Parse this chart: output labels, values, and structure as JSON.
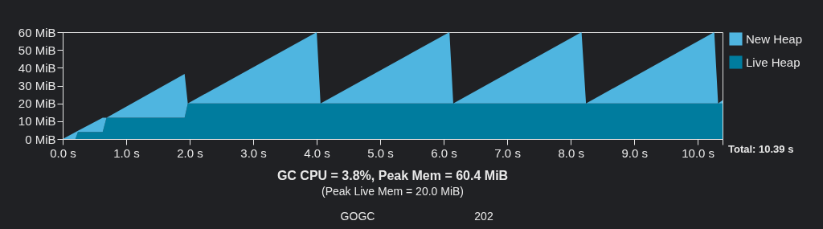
{
  "chart_data": {
    "type": "area",
    "stacked": true,
    "title": "GC CPU = 3.8%, Peak Mem = 60.4 MiB",
    "subtitle": "(Peak Live Mem = 20.0 MiB)",
    "x": [
      0,
      0.2,
      0.24,
      0.63,
      0.69,
      1.92,
      1.97,
      4.0,
      4.06,
      6.09,
      6.15,
      8.17,
      8.24,
      10.26,
      10.32,
      10.39
    ],
    "series": [
      {
        "name": "Live Heap",
        "color": "#007c9e",
        "values": [
          0,
          0,
          4,
          4,
          12,
          12,
          20,
          20,
          20,
          20,
          20,
          20,
          20,
          20,
          20,
          20
        ]
      },
      {
        "name": "New Heap",
        "color": "#4fb5e0",
        "values": [
          0,
          3.8,
          0.6,
          8,
          0,
          24.5,
          0,
          40,
          0,
          40,
          0,
          40,
          0,
          40,
          0,
          1.8
        ]
      }
    ],
    "xlim": [
      0,
      10.39
    ],
    "ylim": [
      0,
      60
    ],
    "xticks": [
      {
        "value": 0,
        "label": "0.0 s"
      },
      {
        "value": 1,
        "label": "1.0 s"
      },
      {
        "value": 2,
        "label": "2.0 s"
      },
      {
        "value": 3,
        "label": "3.0 s"
      },
      {
        "value": 4,
        "label": "4.0 s"
      },
      {
        "value": 5,
        "label": "5.0 s"
      },
      {
        "value": 6,
        "label": "6.0 s"
      },
      {
        "value": 7,
        "label": "7.0 s"
      },
      {
        "value": 8,
        "label": "8.0 s"
      },
      {
        "value": 9,
        "label": "9.0 s"
      },
      {
        "value": 10,
        "label": "10.0 s"
      },
      {
        "value": 10.39,
        "label": null
      }
    ],
    "yticks": [
      {
        "value": 0,
        "label": "0 MiB"
      },
      {
        "value": 10,
        "label": "10 MiB"
      },
      {
        "value": 20,
        "label": "20 MiB"
      },
      {
        "value": 30,
        "label": "30 MiB"
      },
      {
        "value": 40,
        "label": "40 MiB"
      },
      {
        "value": 50,
        "label": "50 MiB"
      },
      {
        "value": 60,
        "label": "60 MiB"
      }
    ],
    "annotations": [
      {
        "text": "Total: 10.39 s",
        "x": 10.39,
        "y": 0
      },
      "GOGC",
      "202"
    ],
    "legend": "right",
    "grid": false
  }
}
